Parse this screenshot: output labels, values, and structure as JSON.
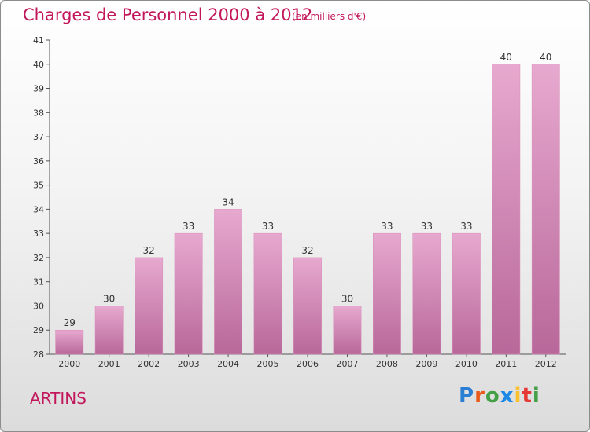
{
  "chart_data": {
    "type": "bar",
    "title": "Charges de Personnel 2000 à 2012",
    "subtitle": "(en milliers d'€)",
    "categories": [
      "2000",
      "2001",
      "2002",
      "2003",
      "2004",
      "2005",
      "2006",
      "2007",
      "2008",
      "2009",
      "2010",
      "2011",
      "2012"
    ],
    "values": [
      29,
      30,
      32,
      33,
      34,
      33,
      32,
      30,
      33,
      33,
      33,
      40,
      40
    ],
    "ylim": [
      28,
      41
    ],
    "yticks": [
      28,
      29,
      30,
      31,
      32,
      33,
      34,
      35,
      36,
      37,
      38,
      39,
      40,
      41
    ],
    "grid": false,
    "bar_color": "#d88bb8",
    "bar_color_light": "#e7a9cf",
    "bar_color_dark": "#b8689a"
  },
  "commune": "ARTINS",
  "logo": {
    "letters": [
      "P",
      "r",
      "o",
      "x",
      "i",
      "t",
      "i"
    ],
    "colors": [
      "#2a7fd4",
      "#e8591a",
      "#43a047",
      "#1e88e5",
      "#fbc02d",
      "#e53935",
      "#43a047"
    ]
  }
}
